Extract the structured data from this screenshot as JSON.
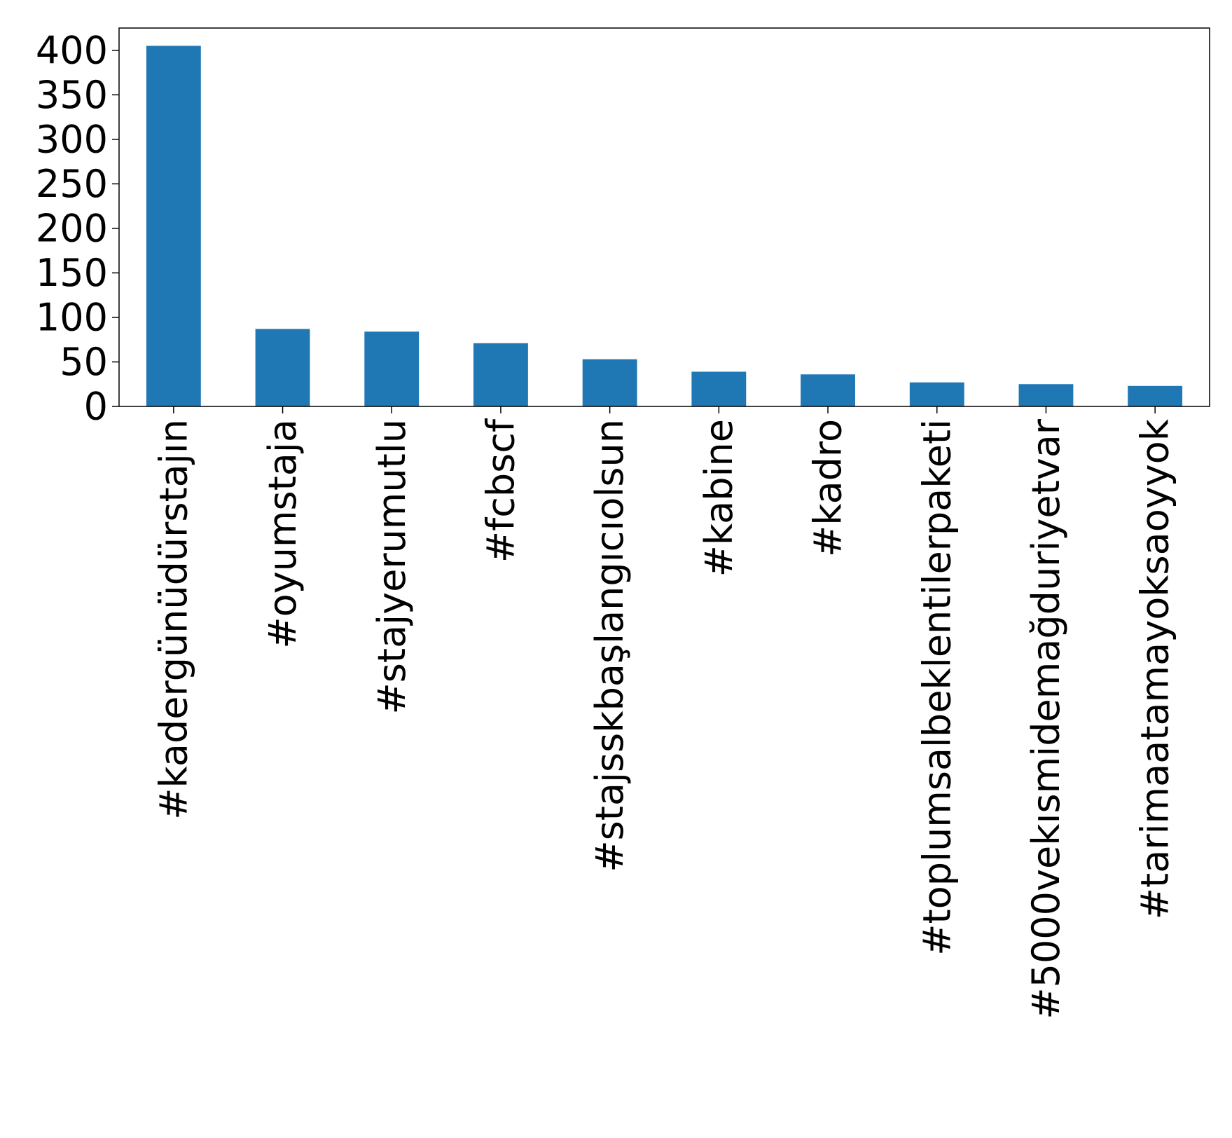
{
  "chart_data": {
    "type": "bar",
    "title": "",
    "xlabel": "",
    "ylabel": "",
    "categories": [
      "#kadergünüdürstajın",
      "#oyumstaja",
      "#stajyerumutlu",
      "#fcbscf",
      "#stajsskbaşlangıcıolsun",
      "#kabine",
      "#kadro",
      "#toplumsalbeklentilerpaketi",
      "#5000vekısmidemağduriyetvar",
      "#tarimaatamayoksaoyyok"
    ],
    "values": [
      405,
      87,
      84,
      71,
      53,
      39,
      36,
      27,
      25,
      23
    ],
    "ylim": [
      0,
      425
    ],
    "yticks": [
      0,
      50,
      100,
      150,
      200,
      250,
      300,
      350,
      400
    ],
    "ytick_labels": [
      "0",
      "50",
      "100",
      "150",
      "200",
      "250",
      "300",
      "350",
      "400"
    ],
    "grid": false,
    "legend": "none",
    "bar_color": "#1f77b4"
  }
}
